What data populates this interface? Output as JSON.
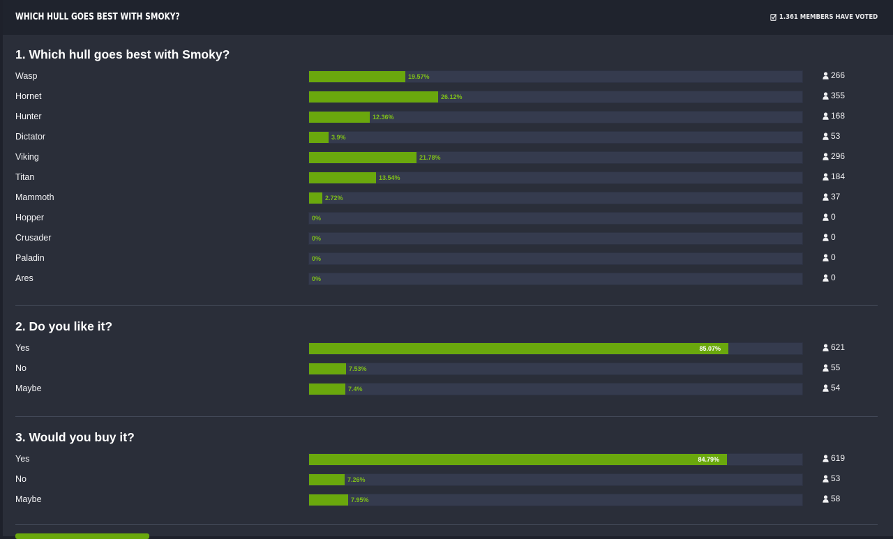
{
  "poll": {
    "title": "WHICH HULL GOES BEST WITH SMOKY?",
    "voted_text": "1.361 MEMBERS HAVE VOTED"
  },
  "colors": {
    "bar": "#6aa80d",
    "track": "#353b4e",
    "page": "#2a2e39"
  },
  "questions": [
    {
      "title": "1. Which hull goes best with Smoky?",
      "options": [
        {
          "label": "Wasp",
          "percent": 19.57,
          "percent_text": "19.57%",
          "votes": "266"
        },
        {
          "label": "Hornet",
          "percent": 26.12,
          "percent_text": "26.12%",
          "votes": "355"
        },
        {
          "label": "Hunter",
          "percent": 12.36,
          "percent_text": "12.36%",
          "votes": "168"
        },
        {
          "label": "Dictator",
          "percent": 3.9,
          "percent_text": "3.9%",
          "votes": "53"
        },
        {
          "label": "Viking",
          "percent": 21.78,
          "percent_text": "21.78%",
          "votes": "296"
        },
        {
          "label": "Titan",
          "percent": 13.54,
          "percent_text": "13.54%",
          "votes": "184"
        },
        {
          "label": "Mammoth",
          "percent": 2.72,
          "percent_text": "2.72%",
          "votes": "37"
        },
        {
          "label": "Hopper",
          "percent": 0,
          "percent_text": "0%",
          "votes": "0"
        },
        {
          "label": "Crusader",
          "percent": 0,
          "percent_text": "0%",
          "votes": "0"
        },
        {
          "label": "Paladin",
          "percent": 0,
          "percent_text": "0%",
          "votes": "0"
        },
        {
          "label": "Ares",
          "percent": 0,
          "percent_text": "0%",
          "votes": "0"
        }
      ]
    },
    {
      "title": "2. Do you like it?",
      "options": [
        {
          "label": "Yes",
          "percent": 85.07,
          "percent_text": "85.07%",
          "votes": "621"
        },
        {
          "label": "No",
          "percent": 7.53,
          "percent_text": "7.53%",
          "votes": "55"
        },
        {
          "label": "Maybe",
          "percent": 7.4,
          "percent_text": "7.4%",
          "votes": "54"
        }
      ]
    },
    {
      "title": "3. Would you buy it?",
      "options": [
        {
          "label": "Yes",
          "percent": 84.79,
          "percent_text": "84.79%",
          "votes": "619"
        },
        {
          "label": "No",
          "percent": 7.26,
          "percent_text": "7.26%",
          "votes": "53"
        },
        {
          "label": "Maybe",
          "percent": 7.95,
          "percent_text": "7.95%",
          "votes": "58"
        }
      ]
    }
  ]
}
